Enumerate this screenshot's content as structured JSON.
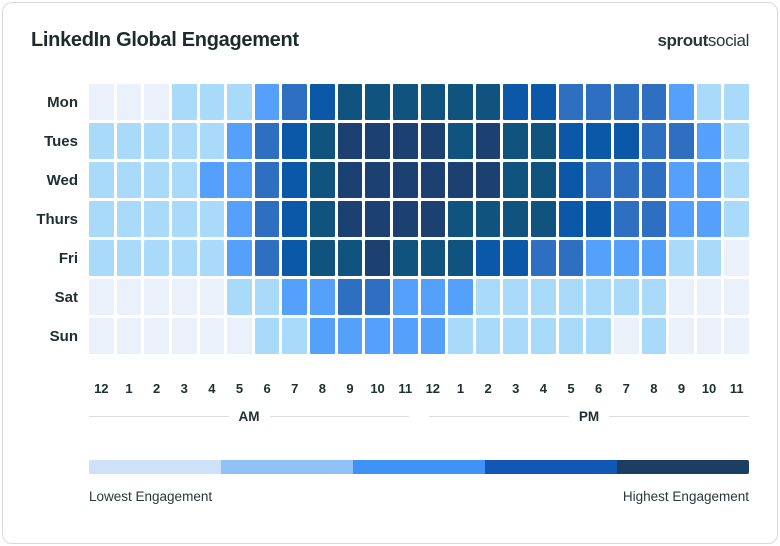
{
  "header": {
    "title": "LinkedIn Global Engagement",
    "logo_bold": "sprout",
    "logo_light": "social"
  },
  "chart_data": {
    "type": "heatmap",
    "title": "LinkedIn Global Engagement",
    "days": [
      "Mon",
      "Tues",
      "Wed",
      "Thurs",
      "Fri",
      "Sat",
      "Sun"
    ],
    "hours": [
      "12",
      "1",
      "2",
      "3",
      "4",
      "5",
      "6",
      "7",
      "8",
      "9",
      "10",
      "11",
      "12",
      "1",
      "2",
      "3",
      "4",
      "5",
      "6",
      "7",
      "8",
      "9",
      "10",
      "11"
    ],
    "period_labels": [
      "AM",
      "PM"
    ],
    "hour_groups": [
      {
        "label": "AM",
        "span": 12
      },
      {
        "label": "PM",
        "span": 12
      }
    ],
    "levels": {
      "names": [
        "lowest",
        "low",
        "medium",
        "medium-high",
        "high",
        "very-high",
        "highest"
      ],
      "colors": [
        "#EAF1FB",
        "#AADAFA",
        "#55A0FA",
        "#2E6FC2",
        "#0C58A8",
        "#10537F",
        "#1C4071"
      ]
    },
    "values": [
      [
        0,
        0,
        0,
        1,
        1,
        1,
        2,
        3,
        4,
        5,
        5,
        5,
        5,
        5,
        5,
        4,
        4,
        3,
        3,
        3,
        3,
        2,
        1,
        1
      ],
      [
        1,
        1,
        1,
        1,
        1,
        2,
        3,
        4,
        5,
        6,
        6,
        6,
        6,
        5,
        6,
        5,
        5,
        4,
        4,
        4,
        3,
        3,
        2,
        1
      ],
      [
        1,
        1,
        1,
        1,
        2,
        2,
        3,
        4,
        5,
        6,
        6,
        6,
        6,
        6,
        6,
        5,
        5,
        4,
        3,
        3,
        3,
        2,
        2,
        1
      ],
      [
        1,
        1,
        1,
        1,
        1,
        2,
        3,
        4,
        5,
        6,
        6,
        6,
        6,
        5,
        5,
        5,
        5,
        4,
        4,
        3,
        3,
        2,
        2,
        1
      ],
      [
        1,
        1,
        1,
        1,
        1,
        2,
        3,
        4,
        5,
        5,
        6,
        5,
        5,
        5,
        4,
        4,
        3,
        3,
        2,
        2,
        2,
        1,
        1,
        0
      ],
      [
        0,
        0,
        0,
        0,
        0,
        1,
        1,
        2,
        2,
        3,
        3,
        2,
        2,
        2,
        1,
        1,
        1,
        1,
        1,
        1,
        1,
        0,
        0,
        0
      ],
      [
        0,
        0,
        0,
        0,
        0,
        0,
        1,
        1,
        2,
        2,
        2,
        2,
        2,
        1,
        1,
        1,
        1,
        1,
        1,
        0,
        1,
        0,
        0,
        0
      ]
    ]
  },
  "legend": {
    "colors": [
      "#CDE2F9",
      "#90C2F8",
      "#3F93F7",
      "#1158B6",
      "#1D3E63"
    ],
    "low_label": "Lowest Engagement",
    "high_label": "Highest Engagement"
  }
}
